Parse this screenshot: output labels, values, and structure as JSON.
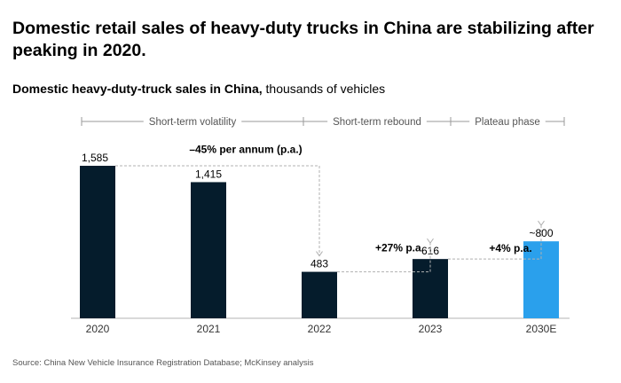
{
  "headline": "Domestic retail sales of heavy-duty trucks in China are stabilizing after peaking in 2020.",
  "subtitle": {
    "bold": "Domestic heavy-duty-truck sales in China,",
    "unit": "thousands of vehicles"
  },
  "source": "Source: China New Vehicle Insurance Registration Database; McKinsey analysis",
  "colors": {
    "bar": "#051c2c",
    "highlight": "#2aa0ec",
    "axis": "#b3b3b3",
    "phase_line": "#9a9a9a",
    "connector": "#b0b0b0",
    "text": "#000000",
    "muted": "#555555"
  },
  "chart_data": {
    "type": "bar",
    "categories": [
      "2020",
      "2021",
      "2022",
      "2023",
      "2030E"
    ],
    "values": [
      1585,
      1415,
      483,
      616,
      800
    ],
    "value_labels": [
      "1,585",
      "1,415",
      "483",
      "616",
      "~800"
    ],
    "highlight_index": 4,
    "ylim": [
      0,
      1585
    ],
    "phases": [
      {
        "label": "Short-term volatility",
        "from": 0,
        "to": 2
      },
      {
        "label": "Short-term rebound",
        "from": 2,
        "to": 3
      },
      {
        "label": "Plateau phase",
        "from": 3,
        "to": 4
      }
    ],
    "annotations": [
      {
        "label": "–45% per annum (p.a.)",
        "from": 0,
        "to": 2
      },
      {
        "label": "+27% p.a.",
        "from": 2,
        "to": 3
      },
      {
        "label": "+4% p.a.",
        "from": 3,
        "to": 4
      }
    ]
  }
}
